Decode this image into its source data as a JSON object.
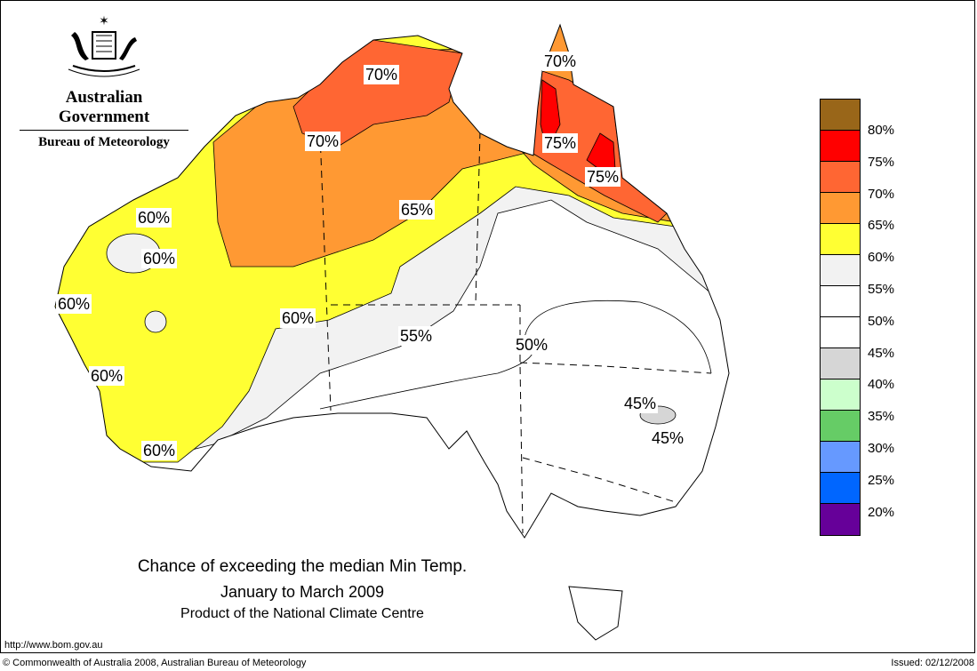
{
  "header": {
    "org_line1": "Australian Government",
    "org_line2": "Bureau of Meteorology"
  },
  "map": {
    "title": "Chance of exceeding the median Min Temp.",
    "period": "January to March 2009",
    "product": "Product of the National Climate Centre",
    "contour_labels": [
      "70%",
      "70%",
      "70%",
      "75%",
      "75%",
      "65%",
      "60%",
      "60%",
      "60%",
      "60%",
      "60%",
      "60%",
      "55%",
      "50%",
      "45%",
      "45%"
    ]
  },
  "legend": {
    "colors": [
      "#996619",
      "#ff0000",
      "#ff6633",
      "#ff9933",
      "#ffff33",
      "#f2f2f2",
      "#ffffff",
      "#ffffff",
      "#d6d6d6",
      "#ccffcc",
      "#66cc66",
      "#6699ff",
      "#0066ff",
      "#660099"
    ],
    "ticks": [
      "80%",
      "75%",
      "70%",
      "65%",
      "60%",
      "55%",
      "50%",
      "45%",
      "40%",
      "35%",
      "30%",
      "25%",
      "20%"
    ]
  },
  "footer": {
    "url": "http://www.bom.gov.au",
    "copyright": "© Commonwealth of Australia 2008, Australian Bureau of Meteorology",
    "issued": "Issued: 02/12/2008"
  }
}
